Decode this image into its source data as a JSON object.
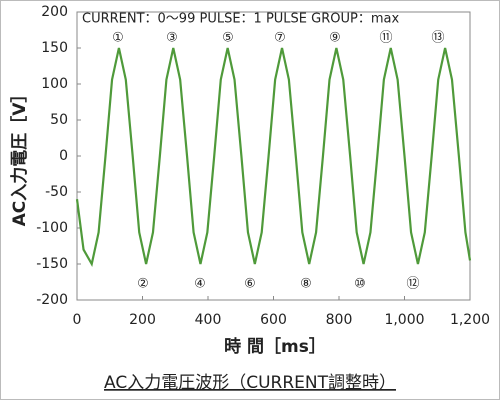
{
  "chart_data": {
    "type": "line",
    "title": "AC入力電圧波形（CURRENT調整時）",
    "x_label": "時 間［ms］",
    "y_label": "AC入力電圧［V］",
    "note": "CURRENT：0～99 PULSE：1 PULSE GROUP：max",
    "annotations": [
      "①",
      "②",
      "③",
      "④",
      "⑤",
      "⑥",
      "⑦",
      "⑧",
      "⑨",
      "⑩",
      "⑪",
      "⑫",
      "⑬"
    ],
    "xlim": [
      0,
      1200
    ],
    "ylim": [
      -200,
      200
    ],
    "xticks": [
      0,
      200,
      400,
      600,
      800,
      {
        "value": 1000,
        "label": "1,000"
      },
      {
        "value": 1200,
        "label": "1,200"
      }
    ],
    "yticks": [
      -200,
      -150,
      -100,
      -50,
      0,
      50,
      100,
      150,
      200
    ],
    "grid": false,
    "x": [
      0,
      20,
      45,
      66,
      87,
      107,
      128,
      149,
      170,
      190,
      211,
      232,
      253,
      273,
      294,
      315,
      336,
      356,
      377,
      398,
      419,
      439,
      460,
      481,
      502,
      522,
      543,
      564,
      585,
      605,
      626,
      647,
      668,
      688,
      709,
      730,
      751,
      771,
      792,
      813,
      834,
      854,
      875,
      896,
      917,
      937,
      958,
      979,
      1000,
      1020,
      1041,
      1062,
      1083,
      1103,
      1124,
      1145,
      1166,
      1186,
      1200
    ],
    "series": [
      {
        "color": "#4f9a3a",
        "values": [
          -60,
          -130,
          -150,
          -106,
          0,
          106,
          150,
          106,
          0,
          -106,
          -150,
          -106,
          0,
          106,
          150,
          106,
          0,
          -106,
          -150,
          -106,
          0,
          106,
          150,
          106,
          0,
          -106,
          -150,
          -106,
          0,
          106,
          150,
          106,
          0,
          -106,
          -150,
          -106,
          0,
          106,
          150,
          106,
          0,
          -106,
          -150,
          -106,
          0,
          106,
          150,
          106,
          0,
          -106,
          -150,
          -106,
          0,
          106,
          150,
          106,
          0,
          -106,
          -145
        ]
      }
    ]
  }
}
